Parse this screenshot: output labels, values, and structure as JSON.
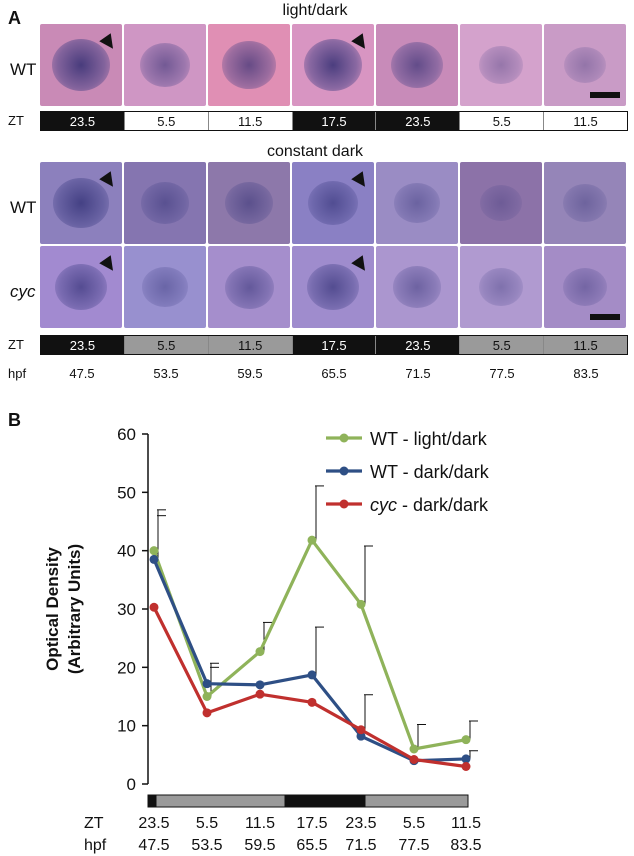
{
  "panel_a": {
    "letter": "A",
    "title_ld": "light/dark",
    "title_dd": "constant dark",
    "row_wt": "WT",
    "row_cyc": "cyc",
    "zt_label": "ZT",
    "hpf_label": "hpf",
    "zt_ld": [
      {
        "text": "23.5",
        "shade": "dark"
      },
      {
        "text": "5.5",
        "shade": "light"
      },
      {
        "text": "11.5",
        "shade": "light"
      },
      {
        "text": "17.5",
        "shade": "dark"
      },
      {
        "text": "23.5",
        "shade": "dark"
      },
      {
        "text": "5.5",
        "shade": "light"
      },
      {
        "text": "11.5",
        "shade": "light"
      }
    ],
    "zt_dd": [
      {
        "text": "23.5",
        "shade": "dark"
      },
      {
        "text": "5.5",
        "shade": "gray"
      },
      {
        "text": "11.5",
        "shade": "gray"
      },
      {
        "text": "17.5",
        "shade": "dark"
      },
      {
        "text": "23.5",
        "shade": "dark"
      },
      {
        "text": "5.5",
        "shade": "gray"
      },
      {
        "text": "11.5",
        "shade": "gray"
      }
    ],
    "hpf": [
      "47.5",
      "53.5",
      "59.5",
      "65.5",
      "71.5",
      "77.5",
      "83.5"
    ]
  },
  "panel_b": {
    "letter": "B"
  },
  "chart_data": {
    "type": "line",
    "ylabel_line1": "Optical Density",
    "ylabel_line2": "(Arbitrary Units)",
    "ylim": [
      0,
      60
    ],
    "yticks": [
      0,
      10,
      20,
      30,
      40,
      50,
      60
    ],
    "x_zt": [
      "23.5",
      "5.5",
      "11.5",
      "17.5",
      "23.5",
      "5.5",
      "11.5"
    ],
    "x_hpf": [
      "47.5",
      "53.5",
      "59.5",
      "65.5",
      "71.5",
      "77.5",
      "83.5"
    ],
    "zt_label": "ZT",
    "hpf_label": "hpf",
    "legend_position": "top-right",
    "series": [
      {
        "name": "WT - light/dark",
        "color": "#8fb35a",
        "values": [
          40,
          15,
          22.7,
          41.8,
          30.8,
          6,
          7.6
        ],
        "error": [
          7,
          5,
          5,
          9.3,
          10,
          4.2,
          3.2
        ]
      },
      {
        "name": "WT - dark/dark",
        "color": "#2e4f85",
        "values": [
          38.5,
          17.2,
          17,
          18.7,
          8.2,
          4,
          4.3
        ],
        "error": [
          7.5,
          3.5,
          0,
          8.2,
          0,
          0,
          1.4
        ]
      },
      {
        "name": "dark/dark",
        "italic_prefix": "cyc",
        "color": "#c0302e",
        "values": [
          30.3,
          12.2,
          15.4,
          14,
          9.3,
          4.2,
          3
        ],
        "error": [
          0,
          0,
          0,
          0,
          6,
          0,
          0
        ]
      }
    ],
    "light_bar": [
      "dark",
      "gray",
      "gray",
      "dark",
      "dark",
      "gray",
      "gray"
    ]
  }
}
